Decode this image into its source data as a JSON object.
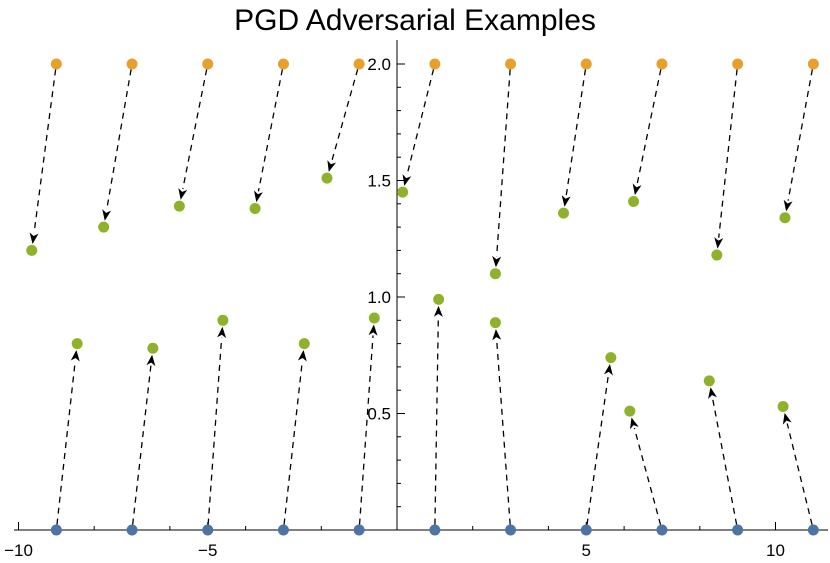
{
  "chart_data": {
    "type": "scatter",
    "title": "PGD Adversarial Examples",
    "xlabel": "",
    "ylabel": "",
    "xlim": [
      -10.5,
      11.5
    ],
    "ylim": [
      0,
      2.1
    ],
    "x_ticks": [
      -10,
      -5,
      5,
      10
    ],
    "x_tick_labels": [
      "−10",
      "−5",
      "5",
      "10"
    ],
    "y_ticks": [
      0.5,
      1.0,
      1.5,
      2.0
    ],
    "y_tick_labels": [
      "0.5",
      "1.0",
      "1.5",
      "2.0"
    ],
    "grid": false,
    "colors": {
      "class_top": "#E8A02C",
      "class_bottom": "#4E74A6",
      "adversarial": "#8FB12B"
    },
    "series": [
      {
        "role": "original-top",
        "points": [
          [
            -9,
            2
          ],
          [
            -7,
            2
          ],
          [
            -5,
            2
          ],
          [
            -3,
            2
          ],
          [
            -1,
            2
          ],
          [
            1,
            2
          ],
          [
            3,
            2
          ],
          [
            5,
            2
          ],
          [
            7,
            2
          ],
          [
            9,
            2
          ],
          [
            11,
            2
          ]
        ]
      },
      {
        "role": "adversarial-top",
        "points": [
          [
            -9.65,
            1.2
          ],
          [
            -7.75,
            1.3
          ],
          [
            -5.75,
            1.39
          ],
          [
            -3.75,
            1.38
          ],
          [
            -1.85,
            1.51
          ],
          [
            0.15,
            1.45
          ],
          [
            2.6,
            1.1
          ],
          [
            4.4,
            1.36
          ],
          [
            6.25,
            1.41
          ],
          [
            8.45,
            1.18
          ],
          [
            10.25,
            1.34
          ]
        ]
      },
      {
        "role": "original-bottom",
        "points": [
          [
            -9,
            0
          ],
          [
            -7,
            0
          ],
          [
            -5,
            0
          ],
          [
            -3,
            0
          ],
          [
            -1,
            0
          ],
          [
            1,
            0
          ],
          [
            3,
            0
          ],
          [
            5,
            0
          ],
          [
            7,
            0
          ],
          [
            9,
            0
          ],
          [
            11,
            0
          ]
        ]
      },
      {
        "role": "adversarial-bottom",
        "points": [
          [
            -8.45,
            0.8
          ],
          [
            -6.45,
            0.78
          ],
          [
            -4.6,
            0.9
          ],
          [
            -2.45,
            0.8
          ],
          [
            -0.6,
            0.91
          ],
          [
            1.1,
            0.99
          ],
          [
            2.6,
            0.89
          ],
          [
            5.65,
            0.74
          ],
          [
            6.15,
            0.51
          ],
          [
            8.25,
            0.64
          ],
          [
            10.2,
            0.53
          ]
        ]
      }
    ]
  }
}
